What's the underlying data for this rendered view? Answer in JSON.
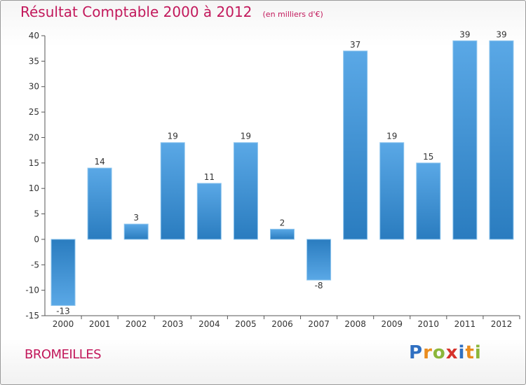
{
  "title": "Résultat Comptable 2000 à 2012",
  "subtitle": "(en milliers d'€)",
  "commune": "BROMEILLES",
  "logo": {
    "letters": [
      {
        "ch": "P",
        "color": "#2f6fc1"
      },
      {
        "ch": "r",
        "color": "#e98c1e"
      },
      {
        "ch": "o",
        "color": "#8bb63a"
      },
      {
        "ch": "x",
        "color": "#d6322b"
      },
      {
        "ch": "i",
        "color": "#2f6fc1"
      },
      {
        "ch": "t",
        "color": "#e98c1e"
      },
      {
        "ch": "i",
        "color": "#8bb63a"
      }
    ]
  },
  "colors": {
    "bar_top": "#5aa8e6",
    "bar_bottom": "#2a7cbf",
    "title": "#c2185b",
    "grid": "#bfbfbf"
  },
  "chart_data": {
    "type": "bar",
    "categories": [
      "2000",
      "2001",
      "2002",
      "2003",
      "2004",
      "2005",
      "2006",
      "2007",
      "2008",
      "2009",
      "2010",
      "2011",
      "2012"
    ],
    "values": [
      -13,
      14,
      3,
      19,
      11,
      19,
      2,
      -8,
      37,
      19,
      15,
      39,
      39
    ],
    "ylim": [
      -15,
      40
    ],
    "yticks": [
      -15,
      -10,
      -5,
      0,
      5,
      10,
      15,
      20,
      25,
      30,
      35,
      40
    ],
    "grid": false
  }
}
